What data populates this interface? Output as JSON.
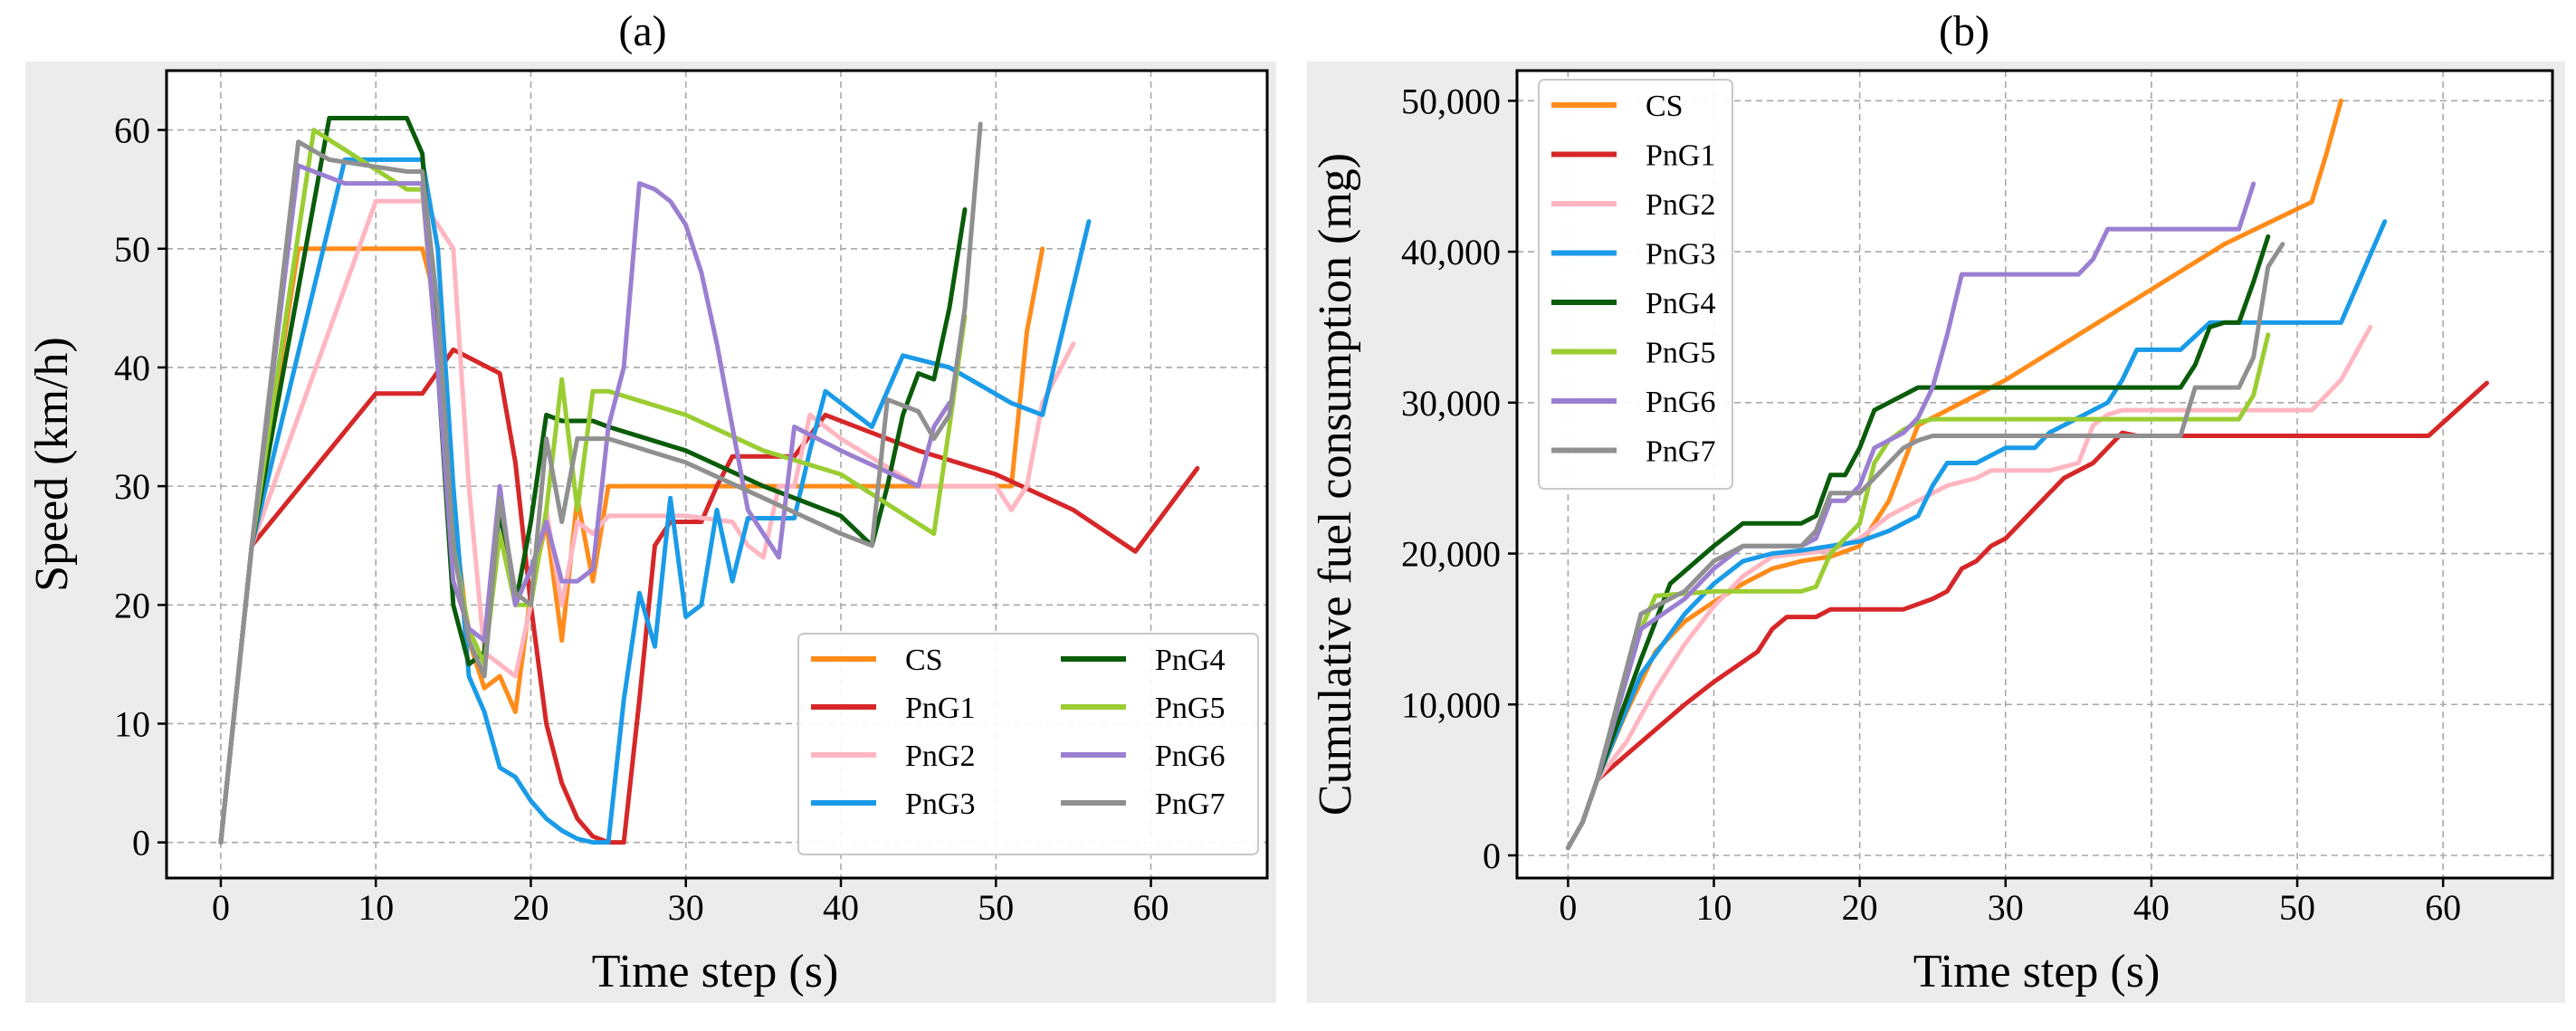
{
  "colors": {
    "CS": "#ff8c1a",
    "PnG1": "#d62728",
    "PnG2": "#ffb6c1",
    "PnG3": "#1a9be8",
    "PnG4": "#0a5c0a",
    "PnG5": "#9acd32",
    "PnG6": "#9b7fd1",
    "PnG7": "#909090"
  },
  "chart_data": [
    {
      "type": "line",
      "title": "(a)",
      "xlabel": "Time step (s)",
      "ylabel": "Speed (km/h)",
      "xlim": [
        -3.5,
        67.5
      ],
      "ylim": [
        -3,
        65
      ],
      "xticks": [
        0,
        10,
        20,
        30,
        40,
        50,
        60
      ],
      "xtick_labels": [
        "0",
        "10",
        "20",
        "30",
        "40",
        "50",
        "60"
      ],
      "yticks": [
        0,
        10,
        20,
        30,
        40,
        50,
        60
      ],
      "ytick_labels": [
        "0",
        "10",
        "20",
        "30",
        "40",
        "50",
        "60"
      ],
      "legend": {
        "position": "bottom-right",
        "columns": 2
      },
      "series": [
        {
          "name": "CS",
          "x": [
            0,
            2,
            5,
            6,
            12,
            13,
            14,
            15,
            16,
            17,
            18,
            19,
            20,
            21,
            22,
            23,
            24,
            25,
            26,
            27,
            28,
            29,
            30,
            35,
            40,
            45,
            51,
            52,
            53
          ],
          "y": [
            0,
            25,
            50,
            50,
            50,
            50,
            45,
            28,
            17,
            13,
            14,
            11,
            21,
            27,
            17,
            29,
            22,
            30,
            30,
            30,
            30,
            30,
            30,
            30,
            30,
            30,
            30,
            43,
            50
          ]
        },
        {
          "name": "PnG1",
          "x": [
            0,
            2,
            10,
            13,
            15,
            18,
            19,
            20,
            21,
            22,
            23,
            24,
            25,
            26,
            27,
            28,
            29,
            30,
            31,
            32,
            33,
            34,
            37,
            39,
            45,
            50,
            55,
            59,
            63
          ],
          "y": [
            0,
            25,
            37.8,
            37.8,
            41.5,
            39.5,
            32,
            20,
            10,
            5,
            2,
            0.5,
            0,
            0,
            12,
            25,
            27,
            27,
            27,
            30,
            32.5,
            32.5,
            32.5,
            36,
            33,
            31,
            28,
            24.5,
            31.5
          ]
        },
        {
          "name": "PnG2",
          "x": [
            0,
            2,
            10,
            12,
            13,
            14,
            15,
            16,
            17,
            18,
            19,
            20,
            21,
            22,
            23,
            24,
            25,
            26,
            30,
            33,
            34,
            35,
            36,
            37,
            38,
            40,
            45,
            50,
            51,
            52,
            53,
            55
          ],
          "y": [
            0,
            25,
            54,
            54,
            54,
            52,
            50,
            30,
            16,
            15,
            14,
            20,
            28,
            20,
            27,
            26,
            27.5,
            27.5,
            27.5,
            27,
            25,
            24,
            30,
            30,
            36,
            34,
            30,
            30,
            28,
            30,
            37,
            42
          ]
        },
        {
          "name": "PnG3",
          "x": [
            0,
            2,
            8,
            13,
            14,
            15,
            16,
            17,
            18,
            19,
            20,
            21,
            22,
            23,
            24,
            25,
            26,
            27,
            28,
            29,
            30,
            31,
            32,
            33,
            34,
            35,
            37,
            38,
            39,
            41,
            42,
            44,
            47,
            49,
            51,
            53,
            56
          ],
          "y": [
            0,
            25,
            57.5,
            57.5,
            50,
            30,
            14,
            11,
            6.3,
            5.5,
            3.5,
            2,
            1,
            0.3,
            0,
            0,
            12,
            21,
            16.5,
            29,
            19,
            20,
            28,
            22,
            27.3,
            27.3,
            27.3,
            33,
            38,
            36,
            35,
            41,
            40,
            38.5,
            37,
            36,
            52.3
          ]
        },
        {
          "name": "PnG4",
          "x": [
            0,
            2,
            7,
            12,
            13,
            14,
            15,
            16,
            17,
            18,
            19,
            20,
            21,
            22,
            23,
            24,
            25,
            30,
            35,
            40,
            42,
            43,
            44,
            45,
            46,
            47,
            48
          ],
          "y": [
            0,
            25,
            61,
            61,
            58,
            40,
            20,
            15,
            16,
            28,
            20,
            27,
            36,
            35.5,
            35.5,
            35.5,
            35,
            33,
            30,
            27.5,
            25,
            30,
            36,
            39.5,
            39,
            45,
            53.3
          ]
        },
        {
          "name": "PnG5",
          "x": [
            0,
            2,
            6,
            12,
            13,
            14,
            15,
            16,
            17,
            18,
            19,
            20,
            21,
            22,
            23,
            24,
            25,
            30,
            35,
            40,
            46,
            47,
            48
          ],
          "y": [
            0,
            25,
            60,
            55,
            55,
            40,
            25,
            18,
            15,
            26,
            20,
            20,
            28,
            39,
            28,
            38,
            38,
            36,
            33,
            31,
            26,
            35,
            44.3
          ]
        },
        {
          "name": "PnG6",
          "x": [
            0,
            2,
            5,
            8,
            12,
            13,
            14,
            15,
            16,
            17,
            18,
            19,
            20,
            21,
            22,
            23,
            24,
            25,
            26,
            27,
            28,
            29,
            30,
            31,
            32,
            33,
            34,
            35,
            36,
            37,
            40,
            45,
            46,
            47
          ],
          "y": [
            0,
            25,
            57,
            55.5,
            55.5,
            55.5,
            40,
            22,
            18,
            17,
            30,
            20,
            23,
            27,
            22,
            22,
            23,
            35,
            40,
            55.5,
            55,
            54,
            52,
            48,
            42,
            35,
            28,
            26,
            24,
            35,
            33,
            30,
            35,
            37
          ]
        },
        {
          "name": "PnG7",
          "x": [
            0,
            2,
            5,
            7,
            12,
            13,
            14,
            15,
            16,
            17,
            18,
            19,
            20,
            21,
            22,
            23,
            24,
            25,
            30,
            35,
            40,
            42,
            43,
            45,
            46,
            47,
            48,
            49
          ],
          "y": [
            0,
            25,
            59,
            57.5,
            56.5,
            56.5,
            45,
            25,
            17,
            14,
            29,
            21,
            20,
            34,
            27,
            34,
            34,
            34,
            32,
            29,
            26,
            25,
            37.3,
            36.3,
            34,
            36,
            45,
            60.5
          ]
        }
      ]
    },
    {
      "type": "line",
      "title": "(b)",
      "xlabel": "Time step (s)",
      "ylabel": "Cumulative fuel consumption (mg)",
      "xlim": [
        -3.5,
        67.5
      ],
      "ylim": [
        -1500,
        52000
      ],
      "xticks": [
        0,
        10,
        20,
        30,
        40,
        50,
        60
      ],
      "xtick_labels": [
        "0",
        "10",
        "20",
        "30",
        "40",
        "50",
        "60"
      ],
      "yticks": [
        0,
        10000,
        20000,
        30000,
        40000,
        50000
      ],
      "ytick_labels": [
        "0",
        "10,000",
        "20,000",
        "30,000",
        "40,000",
        "50,000"
      ],
      "legend": {
        "position": "top-left",
        "columns": 1
      },
      "series": [
        {
          "name": "CS",
          "x": [
            0,
            1,
            2,
            4,
            6,
            8,
            10,
            12,
            14,
            16,
            18,
            20,
            22,
            24,
            26,
            30,
            35,
            40,
            45,
            51,
            52,
            53
          ],
          "y": [
            500,
            2200,
            5000,
            9500,
            13500,
            15500,
            16800,
            18000,
            19000,
            19500,
            19800,
            20500,
            23500,
            28500,
            29500,
            31500,
            34500,
            37500,
            40500,
            43300,
            46500,
            50000
          ]
        },
        {
          "name": "PnG1",
          "x": [
            0,
            1,
            2,
            5,
            8,
            10,
            13,
            14,
            15,
            17,
            18,
            20,
            22,
            23,
            25,
            26,
            27,
            28,
            29,
            30,
            31,
            32,
            33,
            34,
            36,
            37,
            38,
            39,
            41,
            59,
            63
          ],
          "y": [
            500,
            2200,
            5000,
            7500,
            10000,
            11500,
            13500,
            15000,
            15800,
            15800,
            16300,
            16300,
            16300,
            16300,
            17000,
            17500,
            19000,
            19500,
            20500,
            21000,
            22000,
            23000,
            24000,
            25000,
            26000,
            27000,
            28000,
            27800,
            27800,
            27800,
            31300
          ]
        },
        {
          "name": "PnG2",
          "x": [
            0,
            1,
            2,
            4,
            6,
            8,
            10,
            12,
            14,
            16,
            18,
            20,
            22,
            23,
            24,
            26,
            28,
            29,
            31,
            33,
            35,
            36,
            37,
            38,
            40,
            45,
            50,
            51,
            53,
            55
          ],
          "y": [
            500,
            2200,
            5000,
            7500,
            11000,
            14000,
            16500,
            18500,
            19800,
            20000,
            20200,
            21000,
            22500,
            23000,
            23500,
            24500,
            25000,
            25500,
            25500,
            25500,
            26000,
            28500,
            29200,
            29500,
            29500,
            29500,
            29500,
            29500,
            31500,
            35000
          ]
        },
        {
          "name": "PnG3",
          "x": [
            0,
            1,
            2,
            5,
            8,
            10,
            12,
            14,
            16,
            18,
            20,
            22,
            24,
            25,
            26,
            27,
            28,
            30,
            31,
            32,
            33,
            34,
            35,
            37,
            38,
            39,
            41,
            42,
            44,
            47,
            50,
            53,
            56
          ],
          "y": [
            500,
            2200,
            5000,
            12000,
            16000,
            18000,
            19500,
            20000,
            20200,
            20500,
            20800,
            21500,
            22500,
            24500,
            26000,
            26000,
            26000,
            27000,
            27000,
            27000,
            28000,
            28500,
            29000,
            30000,
            31500,
            33500,
            33500,
            33500,
            35300,
            35300,
            35300,
            35300,
            42000
          ]
        },
        {
          "name": "PnG4",
          "x": [
            0,
            1,
            2,
            5,
            7,
            10,
            12,
            14,
            16,
            17,
            18,
            19,
            20,
            21,
            22,
            23,
            24,
            25,
            30,
            35,
            40,
            42,
            43,
            44,
            45,
            46,
            47,
            48
          ],
          "y": [
            500,
            2200,
            5000,
            13000,
            18000,
            20500,
            22000,
            22000,
            22000,
            22500,
            25200,
            25200,
            27000,
            29500,
            30000,
            30500,
            31000,
            31000,
            31000,
            31000,
            31000,
            31000,
            32500,
            35000,
            35300,
            35300,
            38000,
            41000
          ]
        },
        {
          "name": "PnG5",
          "x": [
            0,
            1,
            2,
            5,
            6,
            10,
            12,
            14,
            15,
            16,
            17,
            18,
            19,
            20,
            21,
            22,
            23,
            24,
            25,
            30,
            35,
            40,
            45,
            46,
            47,
            48
          ],
          "y": [
            500,
            2200,
            5000,
            15000,
            17200,
            17500,
            17500,
            17500,
            17500,
            17500,
            17800,
            20000,
            21000,
            22000,
            26000,
            27500,
            28200,
            28700,
            28900,
            28900,
            28900,
            28900,
            28900,
            28900,
            30500,
            34500
          ]
        },
        {
          "name": "PnG6",
          "x": [
            0,
            1,
            2,
            5,
            8,
            10,
            12,
            14,
            16,
            17,
            18,
            19,
            20,
            21,
            22,
            23,
            24,
            25,
            26,
            27,
            30,
            35,
            36,
            37,
            40,
            45,
            46,
            47
          ],
          "y": [
            500,
            2200,
            5000,
            15000,
            17000,
            19000,
            20500,
            20500,
            20500,
            21000,
            23500,
            23500,
            24500,
            27000,
            27500,
            28000,
            29000,
            31000,
            34500,
            38500,
            38500,
            38500,
            39500,
            41500,
            41500,
            41500,
            41500,
            44500
          ]
        },
        {
          "name": "PnG7",
          "x": [
            0,
            1,
            2,
            5,
            8,
            10,
            12,
            14,
            16,
            17,
            18,
            19,
            20,
            21,
            22,
            23,
            24,
            25,
            30,
            35,
            40,
            42,
            43,
            46,
            47,
            48,
            49
          ],
          "y": [
            500,
            2200,
            5000,
            16000,
            17500,
            19500,
            20500,
            20500,
            20500,
            21500,
            24000,
            24000,
            24000,
            25000,
            26000,
            27000,
            27500,
            27800,
            27800,
            27800,
            27800,
            27800,
            31000,
            31000,
            33000,
            39000,
            40500
          ]
        }
      ]
    }
  ]
}
